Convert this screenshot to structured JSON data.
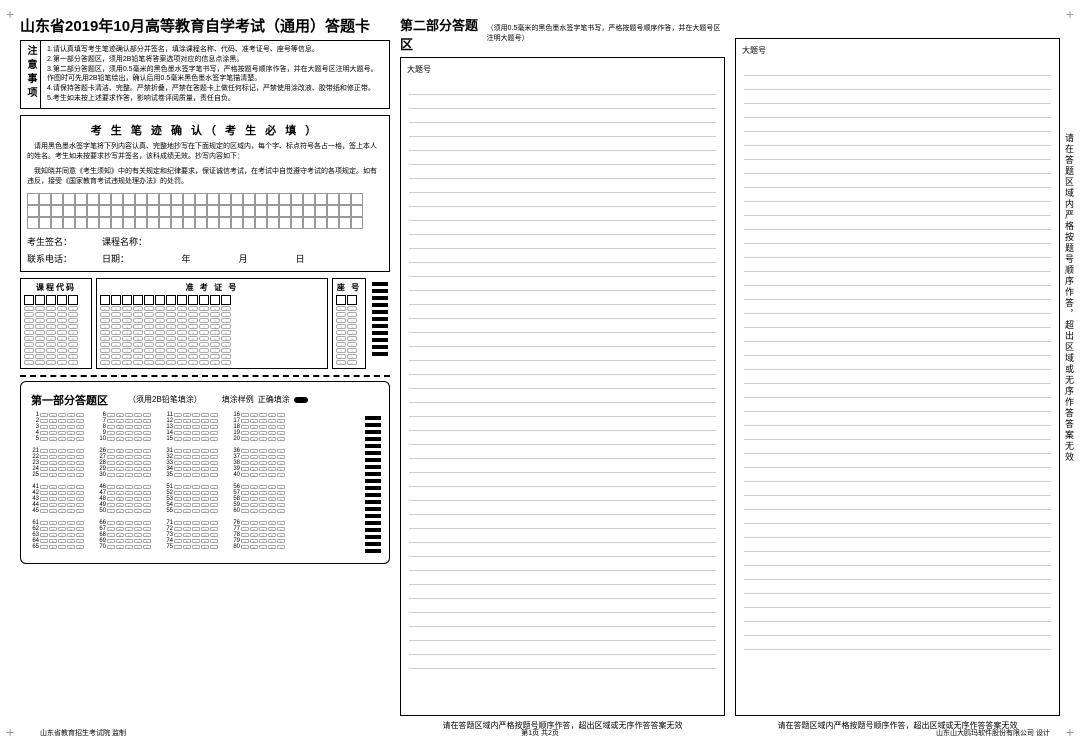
{
  "title": "山东省2019年10月高等教育自学考试（通用）答题卡",
  "notice": {
    "label": "注意事项",
    "items": [
      "1.请认真填写考生笔迹确认部分并签名，填涂课程名称、代码、准考证号、座号等信息。",
      "2.第一部分答题区，须用2B铅笔将答案选项对应的信息点涂黑。",
      "3.第二部分答题区，须用0.5毫米的黑色墨水签字笔书写，严格按题号顺序作答，并在大题号区注明大题号。作图时可先用2B铅笔绘出，确认后用0.5毫米黑色墨水签字笔描清楚。",
      "4.请保持答题卡清洁、完整。严禁折叠，严禁在答题卡上做任何标记，严禁使用涂改液、胶带纸和修正带。",
      "5.考生如未按上述要求作答，影响试卷评阅质量，责任自负。"
    ]
  },
  "confirm": {
    "title": "考 生 笔 迹 确 认（ 考 生 必 填 ）",
    "text1": "请用黑色墨水签字笔将下列内容认真、完整地抄写在下面规定的区域内，每个字、标点符号各占一格，签上本人的姓名。考生如未按要求抄写并签名，该科成绩无效。抄写内容如下：",
    "text2": "我知晓并同意《考生须知》中的有关规定和纪律要求，保证诚信考试，在考试中自觉遵守考试的各项规定。如有违反，接受《国家教育考试违规处理办法》的处罚。",
    "grid_rows": 3,
    "grid_cols": 28
  },
  "sign": {
    "name_label": "考生签名：",
    "course_label": "课程名称：",
    "phone_label": "联系电话：",
    "date_label": "日期：",
    "year": "年",
    "month": "月",
    "day": "日"
  },
  "sections": {
    "course_code": "课程代码",
    "exam_id": "准 考 证 号",
    "seat": "座 号",
    "course_cols": 5,
    "exam_cols": 12,
    "seat_cols": 2,
    "rows": 10
  },
  "answer1": {
    "title": "第一部分答题区",
    "sub": "（须用2B铅笔填涂）",
    "sample_label": "填涂样例",
    "correct_label": "正确填涂",
    "questions": 80,
    "options": [
      "A",
      "B",
      "C",
      "D",
      "E"
    ],
    "blocks_per_group": 5,
    "cols": 4
  },
  "answer2": {
    "title": "第二部分答题区",
    "sub": "（须用0.5毫米的黑色墨水签字笔书写，严格按题号顺序作答，并在大题号区注明大题号）",
    "box_label": "大题号",
    "footer": "请在答题区域内严格按题号顺序作答，超出区域或无序作答答案无效",
    "lines": 42
  },
  "vertical_text": "请在答题区域内严格按题号顺序作答，超出区域或无序作答答案无效",
  "page_footer": {
    "left": "山东省教育招生考试院  监制",
    "center": "第1页  共2页",
    "right": "山东山大鸥玛软件股份有限公司 设计"
  }
}
